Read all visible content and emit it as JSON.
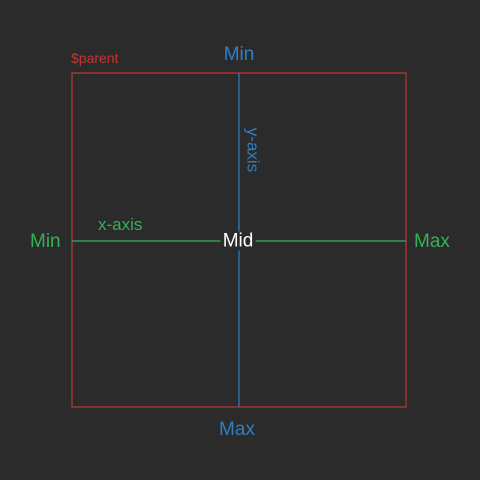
{
  "parent": {
    "label": "$parent",
    "border_color": "#c4372e"
  },
  "x_axis": {
    "label": "x-axis",
    "min_label": "Min",
    "max_label": "Max",
    "color": "#34b05a"
  },
  "y_axis": {
    "label": "y-axis",
    "min_label": "Min",
    "max_label": "Max",
    "color": "#2f7fc4"
  },
  "center": {
    "label": "Mid",
    "color": "#ffffff"
  }
}
